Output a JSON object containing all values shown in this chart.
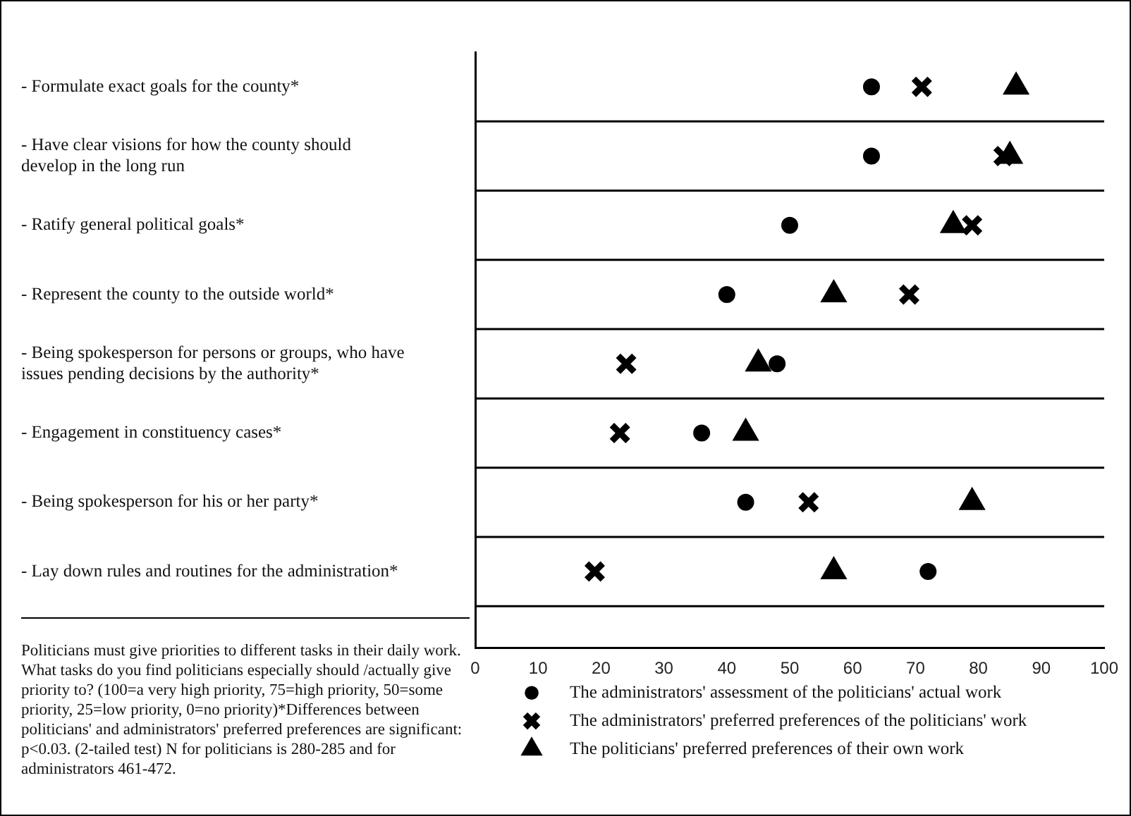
{
  "chart_data": {
    "type": "scatter",
    "orientation": "horizontal",
    "categories": [
      "- Formulate exact goals for the county*",
      "- Have clear visions for how the county should develop in the long run",
      "- Ratify general political goals*",
      "- Represent the county to the outside world*",
      "- Being spokesperson for persons or groups, who have issues pending decisions by the authority*",
      "- Engagement in constituency cases*",
      "- Being spokesperson for his or her party*",
      "- Lay down rules and routines for the administration*"
    ],
    "series": [
      {
        "name": "The administrators' assessment of the politicians' actual work",
        "color": "#000000",
        "marker": "circle",
        "values": [
          63,
          63,
          50,
          40,
          48,
          36,
          43,
          72
        ]
      },
      {
        "name": "The administrators' preferred preferences of the politicians' work",
        "color": "#000000",
        "marker": "cross",
        "values": [
          71,
          84,
          79,
          69,
          24,
          23,
          53,
          19
        ]
      },
      {
        "name": "The politicians' preferred preferences of their own work",
        "color": "#000000",
        "marker": "triangle",
        "values": [
          86,
          85,
          76,
          57,
          45,
          43,
          79,
          57
        ]
      }
    ],
    "xlim": [
      0,
      100
    ],
    "xticks": [
      0,
      10,
      20,
      30,
      40,
      50,
      60,
      70,
      80,
      90,
      100
    ],
    "grid": "y",
    "legend": "bottom",
    "annotations": [
      "Politicians must give priorities to different tasks in their daily work. What tasks do you find politicians especially should /actually give priority to? (100=a very high priority, 75=high priority, 50=some priority, 25=low priority, 0=no priority)*Differences between politicians' and administrators' preferred preferences are significant: p<0.03. (2-tailed test) N for politicians is 280-285 and for administrators 461-472."
    ]
  }
}
